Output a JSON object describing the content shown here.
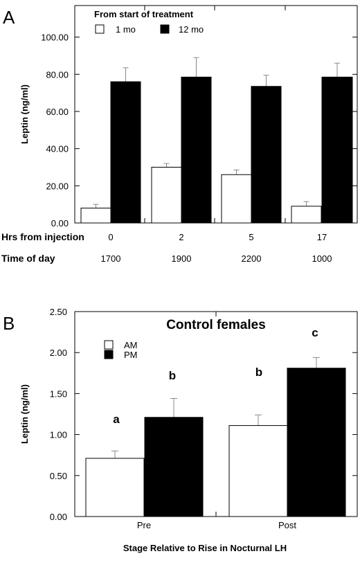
{
  "chart_data": [
    {
      "type": "bar",
      "panel_label": "A",
      "title": "",
      "legend_title": "From start of treatment",
      "legend_placement": "top-left",
      "series": [
        {
          "name": "1 mo",
          "color": "#ffffff",
          "values": [
            8.0,
            30.0,
            26.0,
            9.0
          ],
          "errors": [
            2.0,
            2.0,
            2.5,
            2.5
          ]
        },
        {
          "name": "12 mo",
          "color": "#000000",
          "values": [
            76.0,
            78.5,
            73.5,
            78.5
          ],
          "errors": [
            7.5,
            10.5,
            6.0,
            7.5
          ]
        }
      ],
      "categories": [
        "0",
        "2",
        "5",
        "17"
      ],
      "row_labels": [
        {
          "label": "Hrs from injection",
          "values": [
            "0",
            "2",
            "5",
            "17"
          ]
        },
        {
          "label": "Time of day",
          "values": [
            "1700",
            "1900",
            "2200",
            "1000"
          ]
        }
      ],
      "ylabel": "Leptin (ng/ml)",
      "xlabel": "",
      "yticks": [
        "0.00",
        "20.00",
        "40.00",
        "60.00",
        "80.00",
        "100.00"
      ],
      "ylim": [
        0,
        117
      ],
      "grid": false
    },
    {
      "type": "bar",
      "panel_label": "B",
      "title": "Control females",
      "legend_placement": "top-left",
      "series": [
        {
          "name": "AM",
          "color": "#ffffff",
          "values": [
            0.71,
            1.11
          ],
          "errors": [
            0.09,
            0.13
          ]
        },
        {
          "name": "PM",
          "color": "#000000",
          "values": [
            1.21,
            1.81
          ],
          "errors": [
            0.23,
            0.13
          ]
        }
      ],
      "categories": [
        "Pre",
        "Post"
      ],
      "annotations": [
        {
          "text": "a",
          "category": 0,
          "series": 0
        },
        {
          "text": "b",
          "category": 0,
          "series": 1
        },
        {
          "text": "b",
          "category": 1,
          "series": 0
        },
        {
          "text": "c",
          "category": 1,
          "series": 1
        }
      ],
      "ylabel": "Leptin (ng/ml)",
      "xlabel": "Stage Relative to Rise in Nocturnal LH",
      "yticks": [
        "0.00",
        "0.50",
        "1.00",
        "1.50",
        "2.00",
        "2.50"
      ],
      "ylim": [
        0,
        2.5
      ],
      "grid": false
    }
  ]
}
